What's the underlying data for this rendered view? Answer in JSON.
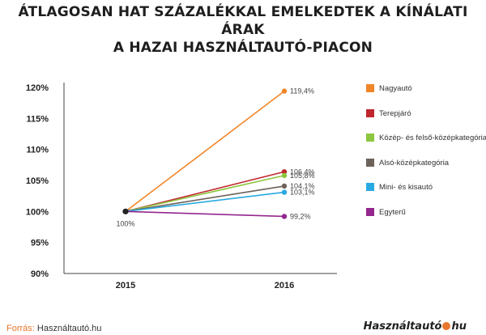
{
  "chart_data": {
    "type": "line",
    "title_lines": [
      "ÁTLAGOSAN HAT SZÁZALÉKKAL EMELKEDTEK A KÍNÁLATI ÁRAK",
      "A HAZAI HASZNÁLTAUTÓ-PIACON"
    ],
    "categories": [
      "2015",
      "2016"
    ],
    "y_ticks": [
      "120%",
      "115%",
      "110%",
      "105%",
      "100%",
      "95%",
      "90%"
    ],
    "ylim": [
      90,
      120
    ],
    "start_label": "100%",
    "grid": false,
    "legend_position": "right",
    "series": [
      {
        "name": "Nagyautó",
        "color": "#f0862a",
        "values": [
          100,
          119.4
        ],
        "end_label": "119,4%"
      },
      {
        "name": "Terepjáró",
        "color": "#c0272d",
        "values": [
          100,
          106.4
        ],
        "end_label": "106,4%"
      },
      {
        "name": "Közép- és felső-középkategória",
        "color": "#8cc63f",
        "values": [
          100,
          105.8
        ],
        "end_label": "105,8%"
      },
      {
        "name": "Alsó-középkategória",
        "color": "#6d625a",
        "values": [
          100,
          104.1
        ],
        "end_label": "104,1%"
      },
      {
        "name": "Mini- és kisautó",
        "color": "#29a9e1",
        "values": [
          100,
          103.1
        ],
        "end_label": "103,1%"
      },
      {
        "name": "Egyterű",
        "color": "#93278f",
        "values": [
          100,
          99.2
        ],
        "end_label": "99,2%"
      }
    ]
  },
  "footer": {
    "source_prefix": "Forrás:",
    "source_text": "Használtautó.hu",
    "logo_left": "Használtautó",
    "logo_right": "hu"
  }
}
